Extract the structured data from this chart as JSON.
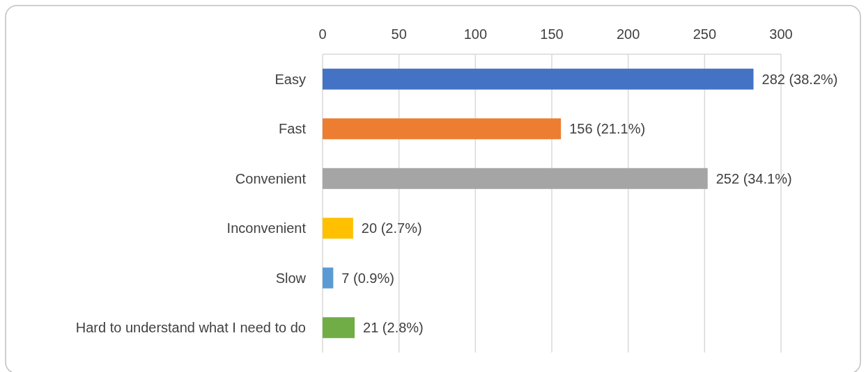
{
  "chart_data": {
    "type": "bar",
    "orientation": "horizontal",
    "categories": [
      "Easy",
      "Fast",
      "Convenient",
      "Inconvenient",
      "Slow",
      "Hard to understand what I need to do"
    ],
    "values": [
      282,
      156,
      252,
      20,
      7,
      21
    ],
    "colors": [
      "#4472c4",
      "#ed7d31",
      "#a5a5a5",
      "#ffc000",
      "#5b9bd5",
      "#70ad47"
    ],
    "value_labels": [
      "282 (38.2%)",
      "156 (21.1%)",
      "252 (34.1%)",
      "20 (2.7%)",
      "7 (0.9%)",
      "21 (2.8%)"
    ],
    "xlim": [
      0,
      300
    ],
    "xticks": [
      0,
      50,
      100,
      150,
      200,
      250,
      300
    ],
    "grid": "x"
  }
}
